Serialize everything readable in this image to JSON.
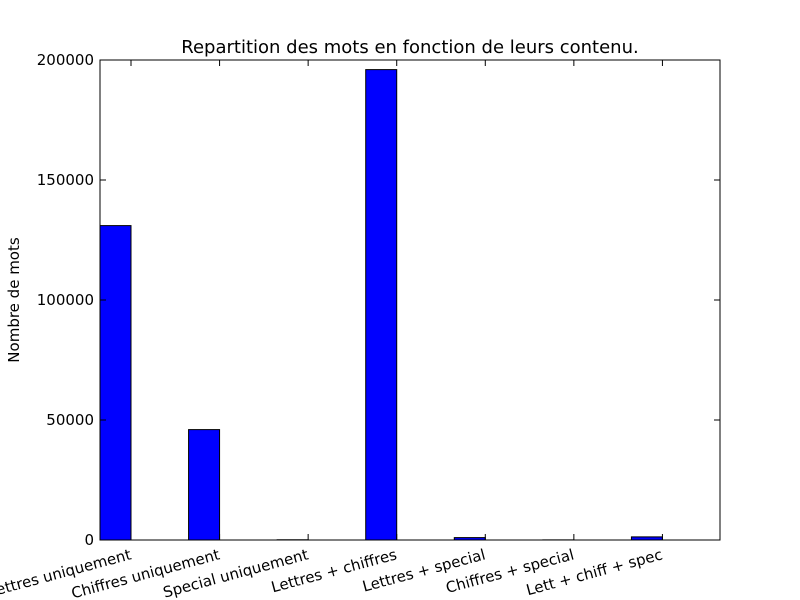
{
  "chart_data": {
    "type": "bar",
    "title": "Repartition des mots en fonction de leurs contenu.",
    "xlabel": "",
    "ylabel": "Nombre de mots",
    "ylim": [
      0,
      200000
    ],
    "yticks": [
      "0",
      "50000",
      "100000",
      "150000",
      "200000"
    ],
    "categories": [
      "Lettres uniquement",
      "Chiffres uniquement",
      "Special uniquement",
      "Lettres + chiffres",
      "Lettres + special",
      "Chiffres + special",
      "Lett + chiff + spec"
    ],
    "values": [
      131000,
      46000,
      100,
      196000,
      1000,
      50,
      1300
    ],
    "bar_color": "#0000ff",
    "grid": false,
    "legend": "none"
  }
}
